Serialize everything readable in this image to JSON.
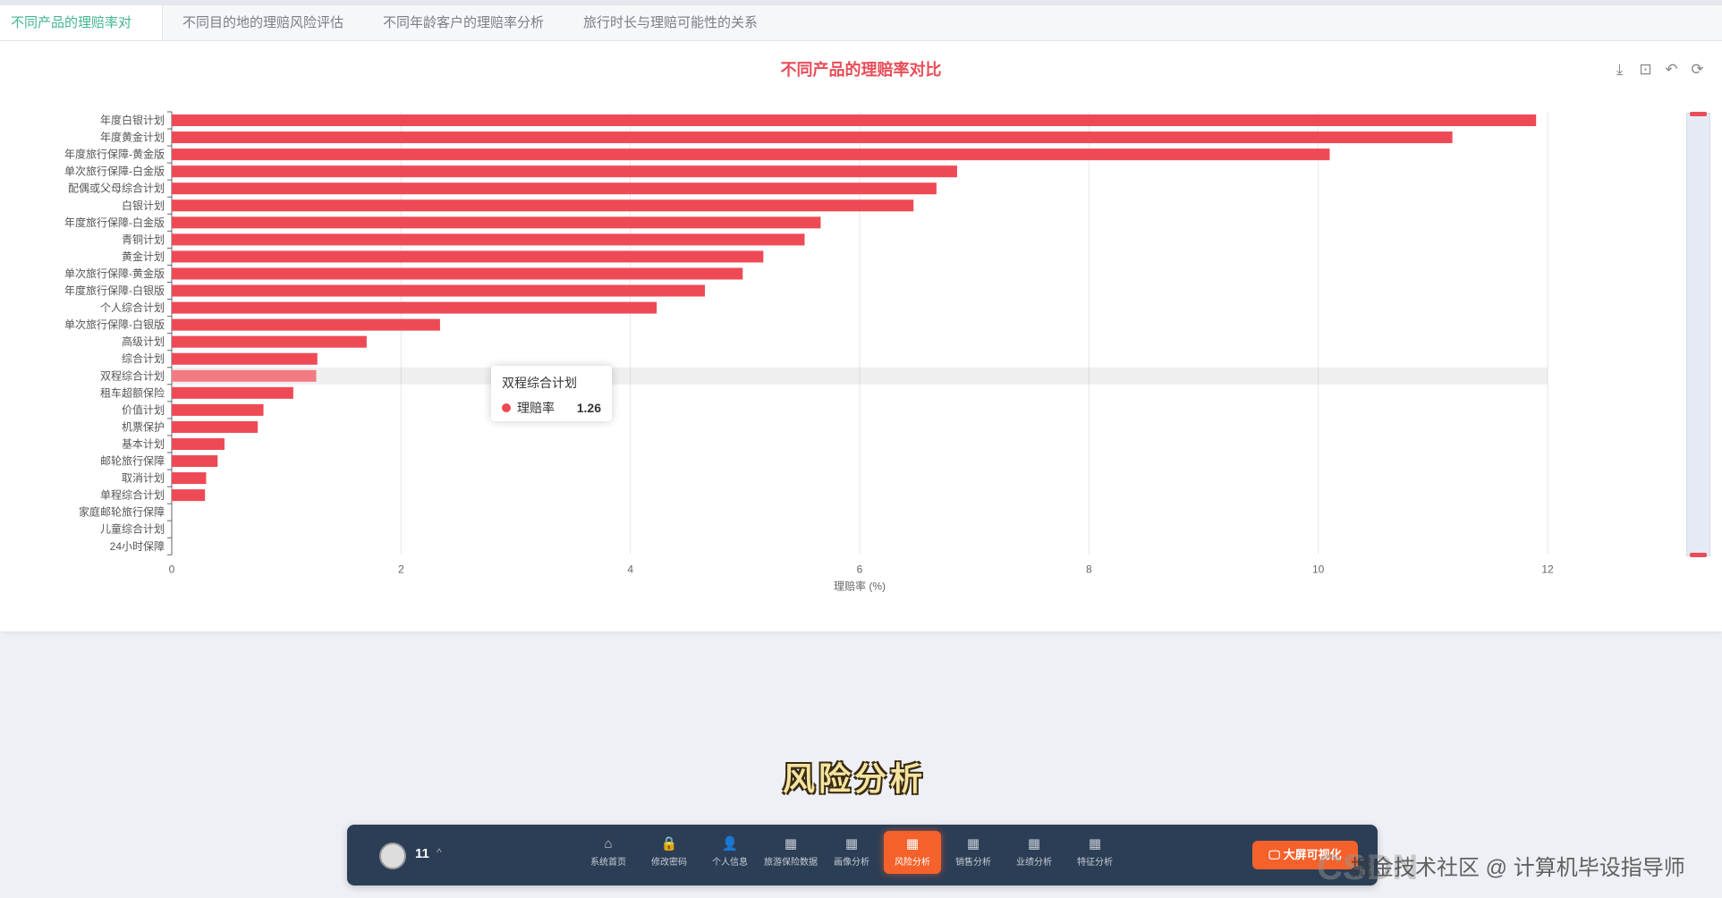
{
  "tabs": [
    "不同产品的理赔率对比",
    "不同目的地的理赔风险评估",
    "不同年龄客户的理赔率分析",
    "旅行时长与理赔可能性的关系"
  ],
  "toolbox": {
    "download": "⤓",
    "zoom": "⊡",
    "reset_zoom": "⊡",
    "restore": "⟳"
  },
  "chart_data": {
    "type": "bar",
    "orientation": "horizontal",
    "title": "不同产品的理赔率对比",
    "xlabel": "理赔率 (%)",
    "ylabel": "",
    "xlim": [
      0,
      12
    ],
    "xticks": [
      "0",
      "2",
      "4",
      "6",
      "8",
      "10",
      "12"
    ],
    "grid": true,
    "color": "#ee4a56",
    "categories": [
      "年度白银计划",
      "年度黄金计划",
      "年度旅行保障-黄金版",
      "单次旅行保障-白金版",
      "配偶或父母综合计划",
      "白银计划",
      "年度旅行保障-白金版",
      "青铜计划",
      "黄金计划",
      "单次旅行保障-黄金版",
      "年度旅行保障-白银版",
      "个人综合计划",
      "单次旅行保障-白银版",
      "高级计划",
      "综合计划",
      "双程综合计划",
      "租车超额保险",
      "价值计划",
      "机票保护",
      "基本计划",
      "邮轮旅行保障",
      "取消计划",
      "单程综合计划",
      "家庭邮轮旅行保障",
      "儿童综合计划",
      "24小时保障"
    ],
    "values": [
      11.9,
      11.17,
      10.1,
      6.85,
      6.67,
      6.47,
      5.66,
      5.52,
      5.16,
      4.98,
      4.65,
      4.23,
      2.34,
      1.7,
      1.27,
      1.26,
      1.06,
      0.8,
      0.75,
      0.46,
      0.4,
      0.3,
      0.29,
      0,
      0,
      0
    ],
    "highlight_index": 15
  },
  "tooltip": {
    "title": "双程综合计划",
    "series": "理赔率",
    "value": "1.26"
  },
  "caption": "风险分析",
  "bottom_bar": {
    "user": "11",
    "items": [
      "系统首页",
      "修改密码",
      "个人信息",
      "旅游保险数据",
      "画像分析",
      "风险分析",
      "销售分析",
      "业绩分析",
      "特征分析"
    ],
    "icons": [
      "⌂",
      "🔒",
      "👤",
      "▦",
      "▦",
      "▦",
      "▦",
      "▦",
      "▦"
    ],
    "active": "风险分析",
    "big_screen": "大屏可视化"
  },
  "watermark": {
    "text": "掘金技术社区 @ 计算机毕设指导师",
    "brand": "CSDN"
  }
}
